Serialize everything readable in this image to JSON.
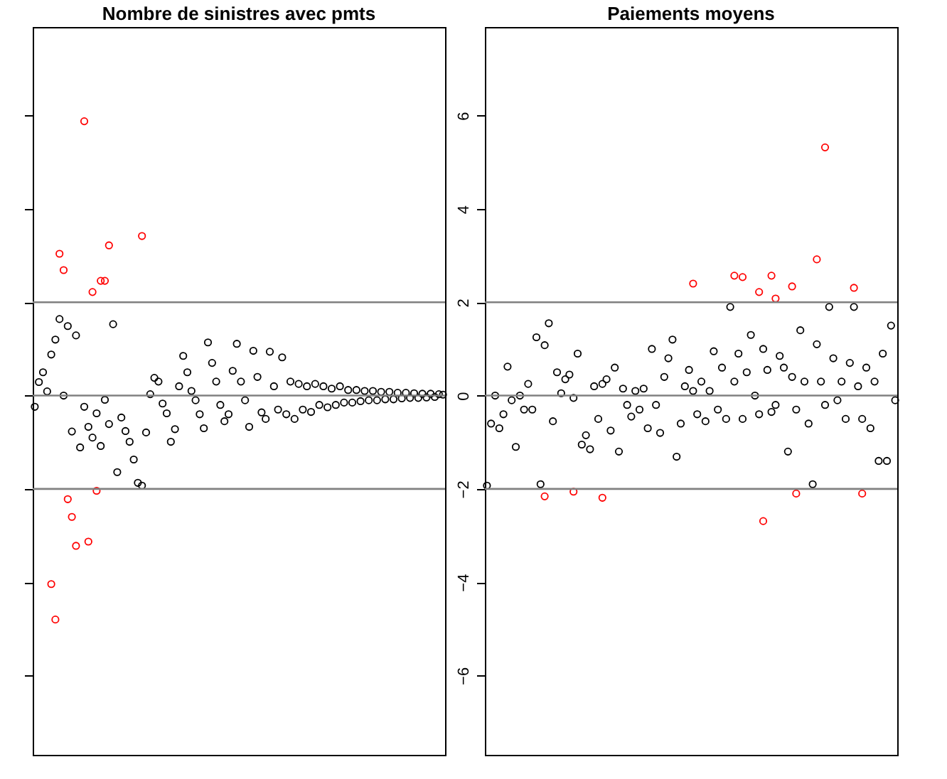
{
  "chart_data": [
    {
      "type": "scatter",
      "title": "Nombre de sinistres avec pmts",
      "marker": "circle",
      "tick_labels": false,
      "ylim": [
        -7.7,
        7.9
      ],
      "yticks": [
        -6,
        -4,
        -2,
        0,
        2,
        4,
        6
      ],
      "categories": [
        null,
        null,
        null,
        null,
        null,
        null,
        null,
        null,
        null,
        null,
        null,
        null,
        null,
        null,
        null,
        null,
        null,
        null,
        null,
        null,
        null,
        null,
        null,
        null,
        null,
        null,
        null,
        null,
        null,
        null,
        null,
        null,
        null,
        null,
        null,
        null,
        null,
        null,
        null,
        null,
        null,
        null,
        null,
        null,
        null,
        null,
        null,
        null,
        null,
        null,
        null,
        null,
        null,
        null,
        null,
        null,
        null,
        null,
        null,
        null,
        null,
        null,
        null,
        null,
        null,
        null,
        null,
        null,
        null,
        null,
        null,
        null,
        null,
        null,
        null,
        null,
        null,
        null,
        null,
        null,
        null,
        null,
        null,
        null,
        null,
        null,
        null,
        null,
        null,
        null,
        null,
        null,
        null,
        null,
        null,
        null,
        null,
        null,
        null,
        null
      ],
      "ref_lines": [
        {
          "axis": "y",
          "value": 2,
          "color": "#808080"
        },
        {
          "axis": "y",
          "value": 0,
          "color": "#808080"
        },
        {
          "axis": "y",
          "value": -2,
          "color": "#808080"
        }
      ],
      "series": [
        {
          "color": "#000000",
          "values": [
            -0.24,
            0.29,
            0.5,
            0.09,
            0.88,
            1.2,
            1.64,
            0,
            1.49,
            -0.77,
            1.29,
            -1.11,
            -0.24,
            -0.67,
            -0.9,
            -0.38,
            -1.08,
            -0.09,
            -0.61,
            1.53,
            -1.64,
            -0.47,
            -0.76,
            -0.99,
            -1.37,
            -1.87,
            -1.93,
            -0.79,
            0.03,
            0.38,
            0.3,
            -0.17,
            -0.38,
            -0.99,
            -0.72,
            0.2,
            0.85,
            0.5,
            0.1,
            -0.1,
            -0.4,
            -0.7,
            1.14,
            0.7,
            0.3,
            -0.2,
            -0.55,
            -0.4,
            0.53,
            1.11,
            0.3,
            -0.1,
            -0.67,
            0.96,
            0.4,
            -0.36,
            -0.5,
            0.94,
            0.2,
            -0.3,
            0.82,
            -0.4,
            0.3,
            -0.5,
            0.25,
            -0.3,
            0.2,
            -0.35,
            0.25,
            -0.2,
            0.2,
            -0.25,
            0.15,
            -0.2,
            0.2,
            -0.15,
            0.12,
            -0.15,
            0.12,
            -0.12,
            0.1,
            -0.1,
            0.1,
            -0.1,
            0.08,
            -0.08,
            0.08,
            -0.08,
            0.06,
            -0.06,
            0.06,
            -0.05,
            0.05,
            -0.05,
            0.04,
            -0.04,
            0.04,
            -0.03,
            0.03,
            0.02
          ]
        },
        {
          "color": "#ff0000",
          "values": [
            null,
            null,
            null,
            null,
            -4.04,
            -4.8,
            3.04,
            2.69,
            -2.22,
            -2.6,
            -3.22,
            null,
            5.88,
            -3.13,
            2.22,
            -2.04,
            2.46,
            2.46,
            3.22,
            null,
            null,
            null,
            null,
            null,
            null,
            null,
            3.42,
            null,
            null,
            null,
            null,
            null,
            null,
            null,
            null,
            null,
            null,
            null,
            null,
            null,
            null,
            null,
            null,
            null,
            null,
            null,
            null,
            null,
            null,
            null,
            null,
            null,
            null,
            null,
            null,
            null,
            null,
            null,
            null,
            null,
            null,
            null,
            null,
            null,
            null,
            null,
            null,
            null,
            null,
            null,
            null,
            null,
            null,
            null,
            null,
            null,
            null,
            null,
            null,
            null,
            null,
            null,
            null,
            null,
            null,
            null,
            null,
            null,
            null,
            null,
            null,
            null,
            null,
            null,
            null,
            null,
            null,
            null,
            null,
            null
          ]
        }
      ]
    },
    {
      "type": "scatter",
      "title": "Paiements moyens",
      "marker": "circle",
      "tick_labels": "y",
      "ylim": [
        -7.7,
        7.9
      ],
      "yticks": [
        -6,
        -4,
        -2,
        0,
        2,
        4,
        6
      ],
      "categories": [
        null,
        null,
        null,
        null,
        null,
        null,
        null,
        null,
        null,
        null,
        null,
        null,
        null,
        null,
        null,
        null,
        null,
        null,
        null,
        null,
        null,
        null,
        null,
        null,
        null,
        null,
        null,
        null,
        null,
        null,
        null,
        null,
        null,
        null,
        null,
        null,
        null,
        null,
        null,
        null,
        null,
        null,
        null,
        null,
        null,
        null,
        null,
        null,
        null,
        null,
        null,
        null,
        null,
        null,
        null,
        null,
        null,
        null,
        null,
        null,
        null,
        null,
        null,
        null,
        null,
        null,
        null,
        null,
        null,
        null,
        null,
        null,
        null,
        null,
        null,
        null,
        null,
        null,
        null,
        null,
        null,
        null,
        null,
        null,
        null,
        null,
        null,
        null,
        null,
        null,
        null,
        null,
        null,
        null,
        null,
        null,
        null,
        null,
        null,
        null
      ],
      "ref_lines": [
        {
          "axis": "y",
          "value": 2,
          "color": "#808080"
        },
        {
          "axis": "y",
          "value": 0,
          "color": "#808080"
        },
        {
          "axis": "y",
          "value": -2,
          "color": "#808080"
        }
      ],
      "series": [
        {
          "color": "#000000",
          "values": [
            -1.93,
            -0.6,
            0.0,
            -0.7,
            -0.4,
            0.62,
            -0.1,
            -1.1,
            0.0,
            -0.3,
            0.25,
            -0.3,
            1.25,
            -1.9,
            1.08,
            1.55,
            -0.55,
            0.5,
            0.05,
            0.35,
            0.45,
            -0.05,
            0.9,
            -1.05,
            -0.85,
            -1.15,
            0.2,
            -0.5,
            0.25,
            0.35,
            -0.75,
            0.6,
            -1.2,
            0.15,
            -0.2,
            -0.45,
            0.1,
            -0.3,
            0.15,
            -0.7,
            1.0,
            -0.2,
            -0.8,
            0.4,
            0.8,
            1.2,
            -1.31,
            -0.6,
            0.2,
            0.55,
            0.1,
            -0.4,
            0.3,
            -0.55,
            0.1,
            0.95,
            -0.3,
            0.6,
            -0.5,
            1.9,
            0.3,
            0.9,
            -0.5,
            0.5,
            1.3,
            0.0,
            -0.4,
            1.0,
            0.55,
            -0.35,
            -0.2,
            0.85,
            0.6,
            -1.2,
            0.4,
            -0.3,
            1.4,
            0.3,
            -0.6,
            -1.9,
            1.1,
            0.3,
            -0.2,
            1.9,
            0.8,
            -0.1,
            0.3,
            -0.5,
            0.7,
            1.9,
            0.2,
            -0.5,
            0.6,
            -0.7,
            0.3,
            -1.4,
            0.9,
            -1.4,
            1.5,
            -0.1
          ]
        },
        {
          "color": "#ff0000",
          "values": [
            null,
            null,
            null,
            null,
            null,
            null,
            null,
            null,
            null,
            null,
            null,
            null,
            null,
            null,
            -2.16,
            null,
            null,
            null,
            null,
            null,
            null,
            -2.06,
            null,
            null,
            null,
            null,
            null,
            null,
            -2.19,
            null,
            null,
            null,
            null,
            null,
            null,
            null,
            null,
            null,
            null,
            null,
            null,
            null,
            null,
            null,
            null,
            null,
            null,
            null,
            null,
            null,
            2.4,
            null,
            null,
            null,
            null,
            null,
            null,
            null,
            null,
            null,
            2.57,
            null,
            2.54,
            null,
            null,
            null,
            2.22,
            -2.69,
            null,
            2.57,
            2.08,
            null,
            null,
            null,
            2.34,
            -2.1,
            null,
            null,
            null,
            null,
            2.92,
            null,
            5.32,
            null,
            null,
            null,
            null,
            null,
            null,
            2.31,
            null,
            -2.1,
            null,
            null,
            null,
            null,
            null,
            null,
            null,
            null
          ]
        }
      ]
    }
  ]
}
